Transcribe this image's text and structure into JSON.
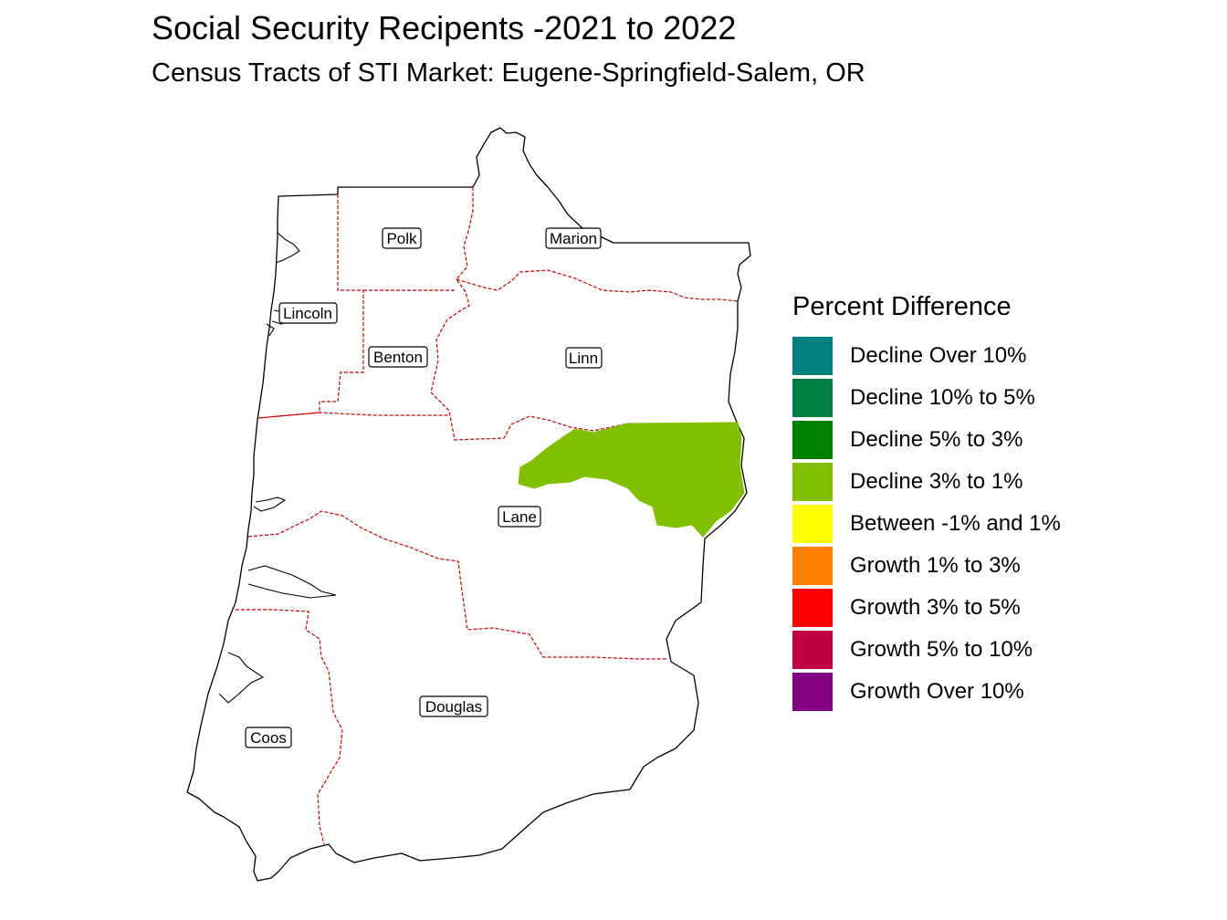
{
  "title": "Social Security Recipents -2021 to 2022",
  "subtitle": "Census Tracts of STI Market: Eugene-Springfield-Salem, OR",
  "legend": {
    "title": "Percent Difference",
    "items": [
      {
        "label": "Decline Over 10%",
        "color": "#008080"
      },
      {
        "label": "Decline 10% to 5%",
        "color": "#008040"
      },
      {
        "label": "Decline 5% to 3%",
        "color": "#008000"
      },
      {
        "label": "Decline 3% to 1%",
        "color": "#80c000"
      },
      {
        "label": "Between -1% and 1%",
        "color": "#ffff00"
      },
      {
        "label": "Growth 1% to 3%",
        "color": "#ff8000"
      },
      {
        "label": "Growth 3% to 5%",
        "color": "#ff0000"
      },
      {
        "label": "Growth 5% to 10%",
        "color": "#c00040"
      },
      {
        "label": "Growth Over 10%",
        "color": "#800080"
      }
    ]
  },
  "counties": [
    {
      "name": "Polk"
    },
    {
      "name": "Marion"
    },
    {
      "name": "Lincoln"
    },
    {
      "name": "Benton"
    },
    {
      "name": "Linn"
    },
    {
      "name": "Lane"
    },
    {
      "name": "Douglas"
    },
    {
      "name": "Coos"
    }
  ],
  "highlighted_tract": {
    "county": "Lane",
    "category": "Decline 3% to 1%",
    "color": "#80c000"
  },
  "colors": {
    "outline": "#000000",
    "county_border": "#cc0000"
  }
}
